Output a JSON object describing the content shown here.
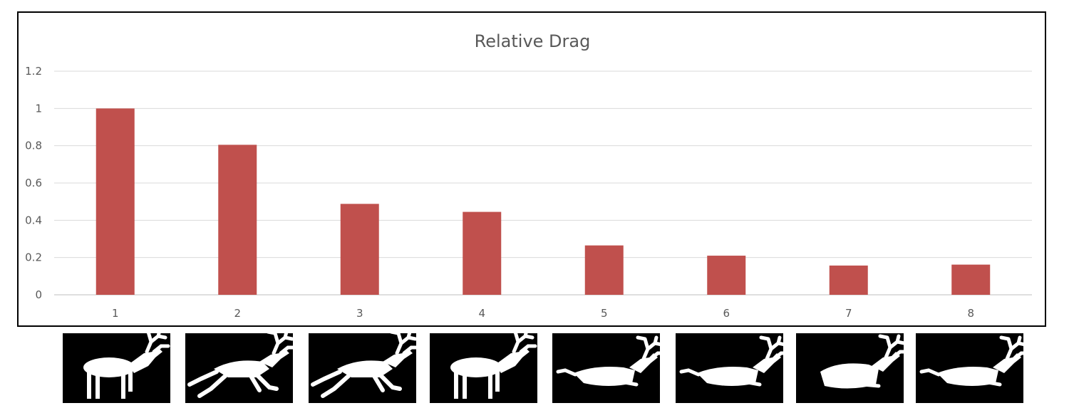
{
  "chart_data": {
    "type": "bar",
    "title": "Relative Drag",
    "xlabel": "",
    "ylabel": "",
    "categories": [
      "1",
      "2",
      "3",
      "4",
      "5",
      "6",
      "7",
      "8"
    ],
    "values": [
      1.0,
      0.805,
      0.488,
      0.445,
      0.265,
      0.21,
      0.157,
      0.162
    ],
    "ylim": [
      0,
      1.2
    ],
    "yticks": [
      "0",
      "0.2",
      "0.4",
      "0.6",
      "0.8",
      "1",
      "1.2"
    ],
    "grid": true,
    "legend": "none",
    "bar_color": "#c0504d"
  },
  "images": [
    {
      "name": "standing-pose",
      "pose": "standing"
    },
    {
      "name": "gallop-pose",
      "pose": "gallop"
    },
    {
      "name": "gallop-pose",
      "pose": "gallop"
    },
    {
      "name": "standing-pose",
      "pose": "standing"
    },
    {
      "name": "lying-pose",
      "pose": "lying"
    },
    {
      "name": "lying-pose",
      "pose": "lying"
    },
    {
      "name": "compact-pose",
      "pose": "compact"
    },
    {
      "name": "lying-pose",
      "pose": "lying"
    }
  ],
  "colors": {
    "silhouette": "#ffffff",
    "thumb_background": "#000000",
    "frame": "#000000"
  }
}
